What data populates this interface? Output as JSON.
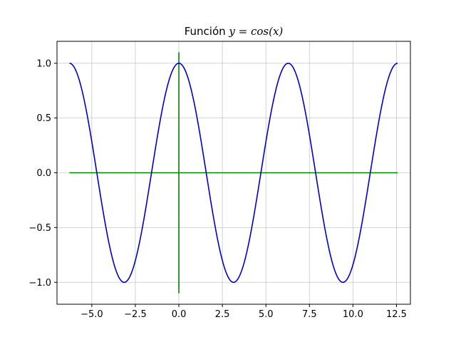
{
  "chart_data": {
    "type": "line",
    "title_prefix": "Función ",
    "title_math": "y = cos(x)",
    "xlabel": "",
    "ylabel": "",
    "xlim": [
      -7.0,
      13.3
    ],
    "ylim": [
      -1.2,
      1.2
    ],
    "x_ticks": [
      -5.0,
      -2.5,
      0.0,
      2.5,
      5.0,
      7.5,
      10.0,
      12.5
    ],
    "x_tick_labels": [
      "−5.0",
      "−2.5",
      "0.0",
      "2.5",
      "5.0",
      "7.5",
      "10.0",
      "12.5"
    ],
    "y_ticks": [
      -1.0,
      -0.5,
      0.0,
      0.5,
      1.0
    ],
    "y_tick_labels": [
      "−1.0",
      "−0.5",
      "0.0",
      "0.5",
      "1.0"
    ],
    "grid": true,
    "series": [
      {
        "function": "cos",
        "x_range": [
          -6.283,
          12.566
        ],
        "color": "#0000cc"
      }
    ],
    "reference_lines": [
      {
        "orientation": "horizontal",
        "y": 0,
        "x_range": [
          -6.283,
          12.566
        ],
        "color": "#008000"
      },
      {
        "orientation": "vertical",
        "x": 0,
        "y_range": [
          -1.1,
          1.1
        ],
        "color": "#008000"
      }
    ]
  }
}
